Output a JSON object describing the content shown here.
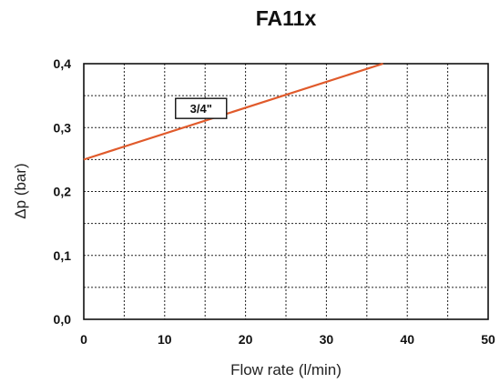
{
  "chart_data": {
    "type": "line",
    "title": "FA11x",
    "xlabel": "Flow rate (l/min)",
    "ylabel": "Δp (bar)",
    "xlim": [
      0,
      50
    ],
    "ylim": [
      0,
      0.4
    ],
    "x_ticks": [
      "0",
      "10",
      "20",
      "30",
      "40",
      "50"
    ],
    "y_ticks": [
      "0,0",
      "0,1",
      "0,2",
      "0,3",
      "0,4"
    ],
    "x_tick_values": [
      0,
      10,
      20,
      30,
      40,
      50
    ],
    "y_tick_values": [
      0,
      0.1,
      0.2,
      0.3,
      0.4
    ],
    "x_grid_step": 5,
    "y_grid_step": 0.05,
    "grid": true,
    "series": [
      {
        "name": "3/4\"",
        "color": "#e05a2b",
        "x": [
          0,
          37
        ],
        "y": [
          0.25,
          0.4
        ]
      }
    ]
  }
}
